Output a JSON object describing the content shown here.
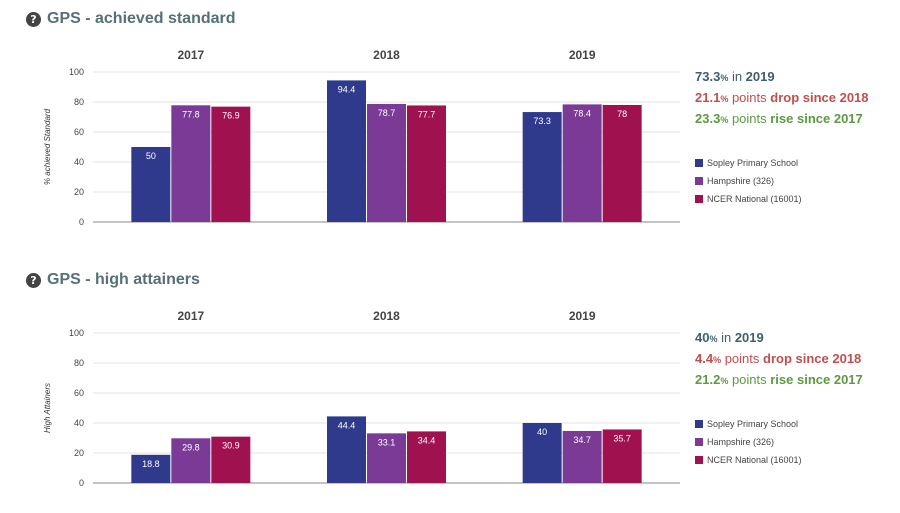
{
  "colors": {
    "school": "#2f3a8c",
    "hampshire": "#7b3a96",
    "national": "#a0124f"
  },
  "panels": [
    {
      "title": "GPS - achieved standard",
      "help_icon": "?",
      "stats": {
        "now_value": "73.3",
        "now_pct": "%",
        "now_label": " in ",
        "now_year": "2019",
        "drop_value": "21.1",
        "drop_pct": "%",
        "drop_label": " points ",
        "drop_text": "drop since 2018",
        "rise_value": "23.3",
        "rise_pct": "%",
        "rise_label": " points ",
        "rise_text": "rise since 2017"
      },
      "legend": [
        {
          "label": "Sopley Primary School",
          "color": "#2f3a8c"
        },
        {
          "label": "Hampshire (326)",
          "color": "#7b3a96"
        },
        {
          "label": "NCER National (16001)",
          "color": "#a0124f"
        }
      ]
    },
    {
      "title": "GPS - high attainers",
      "help_icon": "?",
      "stats": {
        "now_value": "40",
        "now_pct": "%",
        "now_label": " in ",
        "now_year": "2019",
        "drop_value": "4.4",
        "drop_pct": "%",
        "drop_label": " points ",
        "drop_text": "drop since 2018",
        "rise_value": "21.2",
        "rise_pct": "%",
        "rise_label": " points ",
        "rise_text": "rise since 2017"
      },
      "legend": [
        {
          "label": "Sopley Primary School",
          "color": "#2f3a8c"
        },
        {
          "label": "Hampshire (326)",
          "color": "#7b3a96"
        },
        {
          "label": "NCER National (16001)",
          "color": "#a0124f"
        }
      ]
    }
  ],
  "chart_data": [
    {
      "type": "bar",
      "title": "GPS - achieved standard",
      "categories": [
        "2017",
        "2018",
        "2019"
      ],
      "ylabel": "% achieved Standard",
      "ylim": [
        0,
        100
      ],
      "yticks": [
        0,
        20,
        40,
        60,
        80,
        100
      ],
      "grid": true,
      "series": [
        {
          "name": "Sopley Primary School",
          "values": [
            50,
            94.4,
            73.3
          ],
          "labels": [
            "50",
            "94.4",
            "73.3"
          ]
        },
        {
          "name": "Hampshire (326)",
          "values": [
            77.8,
            78.7,
            78.4
          ],
          "labels": [
            "77.8",
            "78.7",
            "78.4"
          ]
        },
        {
          "name": "NCER National (16001)",
          "values": [
            76.9,
            77.7,
            78
          ],
          "labels": [
            "76.9",
            "77.7",
            "78"
          ]
        }
      ]
    },
    {
      "type": "bar",
      "title": "GPS - high attainers",
      "categories": [
        "2017",
        "2018",
        "2019"
      ],
      "ylabel": "High Attainers",
      "ylim": [
        0,
        100
      ],
      "yticks": [
        0,
        20,
        40,
        60,
        80,
        100
      ],
      "grid": true,
      "series": [
        {
          "name": "Sopley Primary School",
          "values": [
            18.8,
            44.4,
            40
          ],
          "labels": [
            "18.8",
            "44.4",
            "40"
          ]
        },
        {
          "name": "Hampshire (326)",
          "values": [
            29.8,
            33.1,
            34.7
          ],
          "labels": [
            "29.8",
            "33.1",
            "34.7"
          ]
        },
        {
          "name": "NCER National (16001)",
          "values": [
            30.9,
            34.4,
            35.7
          ],
          "labels": [
            "30.9",
            "34.4",
            "35.7"
          ]
        }
      ]
    }
  ]
}
